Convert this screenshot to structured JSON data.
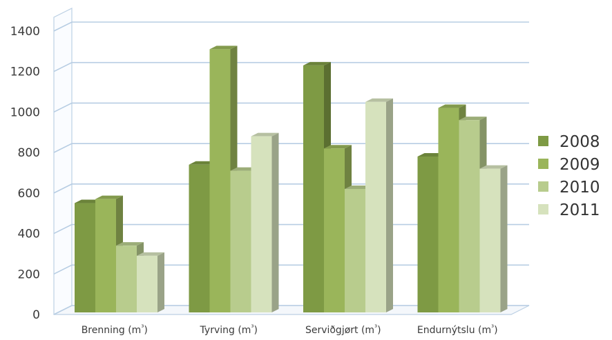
{
  "chart_data": {
    "type": "bar",
    "title": "",
    "xlabel": "",
    "ylabel": "",
    "ylim": [
      0,
      1400
    ],
    "yticks": [
      0,
      200,
      400,
      600,
      800,
      1000,
      1200,
      1400
    ],
    "categories": [
      "Brenning (m³)",
      "Tyrving (m³)",
      "Serviðgjørt (m³)",
      "Endurnýtslu (m³)"
    ],
    "series": [
      {
        "name": "2008",
        "color": "#7e9a44",
        "values": [
          550,
          740,
          1230,
          780
        ]
      },
      {
        "name": "2009",
        "color": "#9ab55a",
        "values": [
          570,
          1310,
          820,
          1020
        ]
      },
      {
        "name": "2010",
        "color": "#b8cc8d",
        "values": [
          340,
          710,
          620,
          960
        ]
      },
      {
        "name": "2011",
        "color": "#d6e2bd",
        "values": [
          290,
          880,
          1050,
          720
        ]
      }
    ],
    "grid": true,
    "legend": "right",
    "style": "3d-clustered-column"
  }
}
